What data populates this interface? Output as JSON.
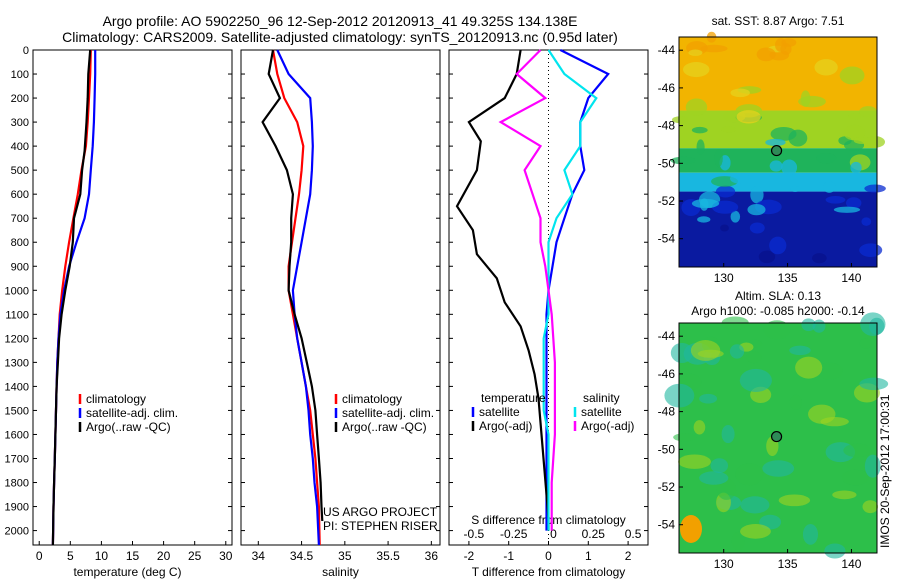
{
  "figure": {
    "title_line1": "Argo profile: AO 5902250_96 12-Sep-2012 20120913_41 49.325S 134.138E",
    "title_line2": "Climatology: CARS2009. Satellite-adjusted climatology: synTS_20120913.nc (0.95d later)",
    "side_stamp": "IMOS 20-Sep-2012 17:00:31"
  },
  "colors": {
    "climatology": "#ff0000",
    "satellite": "#0000ff",
    "argo": "#000000",
    "satellite_s": "#00e5ee",
    "argo_adj_s": "#ff00ff",
    "marker": "#2e8b57"
  },
  "depth_axis": {
    "ylim": [
      0,
      2060
    ],
    "ticks": [
      0,
      100,
      200,
      300,
      400,
      500,
      600,
      700,
      800,
      900,
      1000,
      1100,
      1200,
      1300,
      1400,
      1500,
      1600,
      1700,
      1800,
      1900,
      2000
    ]
  },
  "chart_data": [
    {
      "type": "line",
      "id": "temperature",
      "xlabel": "temperature (deg C)",
      "xlim": [
        -1,
        31
      ],
      "xticks": [
        0,
        5,
        10,
        15,
        20,
        25,
        30
      ],
      "legend": [
        "climatology",
        "satellite-adj. clim.",
        "Argo(..raw -QC)"
      ],
      "legend_placement": "lower-middle",
      "series": [
        {
          "name": "climatology",
          "color": "climatology",
          "x": [
            8.3,
            8.2,
            8.0,
            7.8,
            7.5,
            6.8,
            6.2,
            5.5,
            4.8,
            4.2,
            3.7,
            3.3,
            3.1,
            2.9,
            2.8,
            2.7,
            2.6,
            2.5,
            2.4,
            2.3,
            2.2
          ],
          "y": [
            0,
            100,
            200,
            300,
            400,
            500,
            600,
            700,
            800,
            900,
            1000,
            1100,
            1200,
            1300,
            1400,
            1500,
            1600,
            1700,
            1800,
            1900,
            2060
          ]
        },
        {
          "name": "satellite-adj. clim.",
          "color": "satellite",
          "x": [
            9.0,
            9.0,
            8.9,
            8.8,
            8.6,
            8.3,
            8.0,
            7.3,
            6.0,
            4.8,
            4.0,
            3.4,
            3.1,
            2.9,
            2.8,
            2.7,
            2.6,
            2.5,
            2.4,
            2.3,
            2.2
          ],
          "y": [
            0,
            100,
            200,
            300,
            400,
            500,
            600,
            700,
            800,
            900,
            1000,
            1100,
            1200,
            1300,
            1400,
            1500,
            1600,
            1700,
            1800,
            1900,
            2060
          ]
        },
        {
          "name": "Argo(..raw -QC)",
          "color": "argo",
          "x": [
            8.2,
            7.9,
            7.8,
            7.6,
            7.3,
            6.9,
            6.6,
            5.6,
            5.4,
            4.9,
            4.2,
            3.6,
            3.2,
            3.0,
            2.8,
            2.7,
            2.6,
            2.5,
            2.4,
            2.3,
            2.2
          ],
          "y": [
            0,
            100,
            200,
            300,
            420,
            500,
            600,
            700,
            800,
            900,
            1000,
            1100,
            1200,
            1300,
            1400,
            1500,
            1600,
            1700,
            1800,
            1900,
            2060
          ]
        }
      ]
    },
    {
      "type": "line",
      "id": "salinity",
      "xlabel": "salinity",
      "xlim": [
        33.8,
        36.1
      ],
      "xticks": [
        34,
        34.5,
        35,
        35.5,
        36
      ],
      "xtick_labels": [
        "34",
        "34.5",
        "35",
        "35.5",
        "36"
      ],
      "legend": [
        "climatology",
        "satellite-adj. clim.",
        "Argo(..raw -QC)"
      ],
      "legend_placement": "lower-right",
      "annotation": [
        "US ARGO PROJECT",
        "PI: STEPHEN RISER"
      ],
      "series": [
        {
          "name": "climatology",
          "color": "climatology",
          "x": [
            34.17,
            34.22,
            34.3,
            34.45,
            34.52,
            34.5,
            34.47,
            34.43,
            34.39,
            34.35,
            34.35,
            34.4,
            34.45,
            34.5,
            34.55,
            34.6,
            34.63,
            34.66,
            34.68,
            34.7,
            34.71
          ],
          "y": [
            0,
            100,
            200,
            300,
            400,
            500,
            600,
            700,
            800,
            900,
            1000,
            1100,
            1200,
            1300,
            1400,
            1500,
            1600,
            1700,
            1800,
            1900,
            2060
          ]
        },
        {
          "name": "satellite-adj. clim.",
          "color": "satellite",
          "x": [
            34.22,
            34.35,
            34.6,
            34.62,
            34.63,
            34.62,
            34.6,
            34.55,
            34.5,
            34.45,
            34.4,
            34.42,
            34.45,
            34.5,
            34.55,
            34.58,
            34.6,
            34.63,
            34.65,
            34.68,
            34.7
          ],
          "y": [
            0,
            100,
            200,
            300,
            400,
            500,
            600,
            700,
            800,
            900,
            1000,
            1100,
            1200,
            1300,
            1400,
            1500,
            1600,
            1700,
            1800,
            1900,
            2060
          ]
        },
        {
          "name": "Argo(..raw -QC)",
          "color": "argo",
          "x": [
            34.17,
            34.12,
            34.25,
            34.05,
            34.2,
            34.33,
            34.4,
            34.38,
            34.38,
            34.36,
            34.35,
            34.42,
            34.5,
            34.56,
            34.62,
            34.66,
            34.68,
            34.7,
            34.72,
            34.73,
            34.74
          ],
          "y": [
            0,
            100,
            200,
            300,
            400,
            500,
            600,
            700,
            800,
            900,
            1000,
            1100,
            1200,
            1300,
            1400,
            1500,
            1600,
            1700,
            1800,
            1900,
            1960
          ]
        }
      ]
    },
    {
      "type": "line",
      "id": "difference",
      "xlabel": "T difference from climatology",
      "xlabel2": "S difference from climatology",
      "xlim": [
        -2.5,
        2.5
      ],
      "xticks": [
        -2,
        -1,
        0,
        1,
        2
      ],
      "xticks_s": [
        -0.5,
        -0.25,
        0,
        0.25,
        0.5
      ],
      "xtick_s_labels": [
        "-0.5",
        "-0.25",
        "0",
        "0.25",
        "0.5"
      ],
      "zero_line": "dotted",
      "legend_temperature_title": "temperature",
      "legend_salinity_title": "salinity",
      "legend": [
        "satellite",
        "Argo(-adj)",
        "satellite",
        "Argo(-adj)"
      ],
      "legend_placement": "lower-middle",
      "series": [
        {
          "name": "satellite",
          "group": "temperature",
          "color": "satellite",
          "x": [
            0.3,
            1.5,
            1.0,
            0.8,
            0.8,
            0.9,
            0.6,
            0.4,
            0.2,
            0.1,
            0.0,
            -0.05,
            -0.05,
            -0.05,
            -0.05,
            -0.05,
            -0.05,
            -0.05,
            -0.05,
            -0.05,
            -0.05
          ],
          "y": [
            0,
            100,
            200,
            300,
            400,
            500,
            600,
            700,
            800,
            900,
            1000,
            1100,
            1200,
            1300,
            1400,
            1500,
            1600,
            1700,
            1800,
            1900,
            2000
          ]
        },
        {
          "name": "Argo(-adj)",
          "group": "temperature",
          "color": "argo",
          "x": [
            -0.7,
            -0.8,
            -1.1,
            -2.0,
            -1.7,
            -1.8,
            -2.3,
            -1.9,
            -1.8,
            -1.3,
            -1.1,
            -0.7,
            -0.5,
            -0.35,
            -0.25,
            -0.2,
            -0.15,
            -0.1,
            -0.05,
            0.0,
            0.0
          ],
          "y": [
            0,
            100,
            200,
            300,
            380,
            500,
            650,
            750,
            850,
            950,
            1050,
            1150,
            1250,
            1350,
            1450,
            1550,
            1650,
            1750,
            1850,
            1950,
            2000
          ]
        },
        {
          "name": "satellite",
          "group": "salinity",
          "color": "satellite_s",
          "x": [
            0.0,
            0.1,
            0.3,
            0.2,
            0.2,
            0.1,
            0.15,
            0.05,
            0.0,
            0.0,
            0.0,
            0.0,
            -0.03,
            -0.03,
            -0.03,
            -0.03,
            0.0,
            0.0,
            0.0,
            0.0,
            0.0
          ],
          "y": [
            0,
            100,
            200,
            300,
            400,
            500,
            600,
            700,
            800,
            900,
            1000,
            1100,
            1200,
            1300,
            1400,
            1500,
            1600,
            1700,
            1800,
            1900,
            2000
          ]
        },
        {
          "name": "Argo(-adj)",
          "group": "salinity",
          "color": "argo_adj_s",
          "x": [
            -0.05,
            -0.2,
            -0.02,
            -0.3,
            -0.05,
            -0.15,
            -0.1,
            -0.05,
            -0.05,
            -0.02,
            0.0,
            0.02,
            0.03,
            0.04,
            0.04,
            0.04,
            0.04,
            0.03,
            0.02,
            0.02,
            0.02
          ],
          "y": [
            0,
            100,
            200,
            300,
            400,
            500,
            600,
            700,
            800,
            900,
            1000,
            1100,
            1200,
            1300,
            1400,
            1500,
            1600,
            1700,
            1800,
            1900,
            2000
          ]
        }
      ]
    },
    {
      "type": "heatmap",
      "id": "sst_map",
      "title": "sat. SST: 8.87  Argo: 7.51",
      "xlim": [
        126.5,
        142
      ],
      "ylim": [
        -55.5,
        -43.3
      ],
      "xticks": [
        130,
        135,
        140
      ],
      "yticks": [
        -44,
        -46,
        -48,
        -50,
        -52,
        -54
      ],
      "marker": {
        "lon": 134.138,
        "lat": -49.325
      },
      "bands": [
        {
          "lat_from": -43.3,
          "lat_to": -47.2,
          "color": "#f2b400"
        },
        {
          "lat_from": -47.2,
          "lat_to": -49.2,
          "color": "#9fd322"
        },
        {
          "lat_from": -49.2,
          "lat_to": -50.5,
          "color": "#1fb35b"
        },
        {
          "lat_from": -50.5,
          "lat_to": -51.5,
          "color": "#18b7e0"
        },
        {
          "lat_from": -51.5,
          "lat_to": -55.5,
          "color": "#0a1aa0"
        }
      ],
      "colormap": [
        "#08128c",
        "#0a2bd0",
        "#18b7e0",
        "#1fb35b",
        "#9fd322",
        "#e6d11c",
        "#f2a000"
      ]
    },
    {
      "type": "heatmap",
      "id": "sla_map",
      "title": "Altim. SLA: 0.13",
      "subtitle": "Argo h1000: -0.085 h2000: -0.14",
      "xlim": [
        126.5,
        142
      ],
      "ylim": [
        -55.5,
        -43.3
      ],
      "xticks": [
        130,
        135,
        140
      ],
      "yticks": [
        -44,
        -46,
        -48,
        -50,
        -52,
        -54
      ],
      "marker": {
        "lon": 134.138,
        "lat": -49.325
      },
      "base_color": "#2dbf4a",
      "colormap": [
        "#20b8a0",
        "#2dbf4a",
        "#9fd322",
        "#f2a000"
      ]
    }
  ]
}
